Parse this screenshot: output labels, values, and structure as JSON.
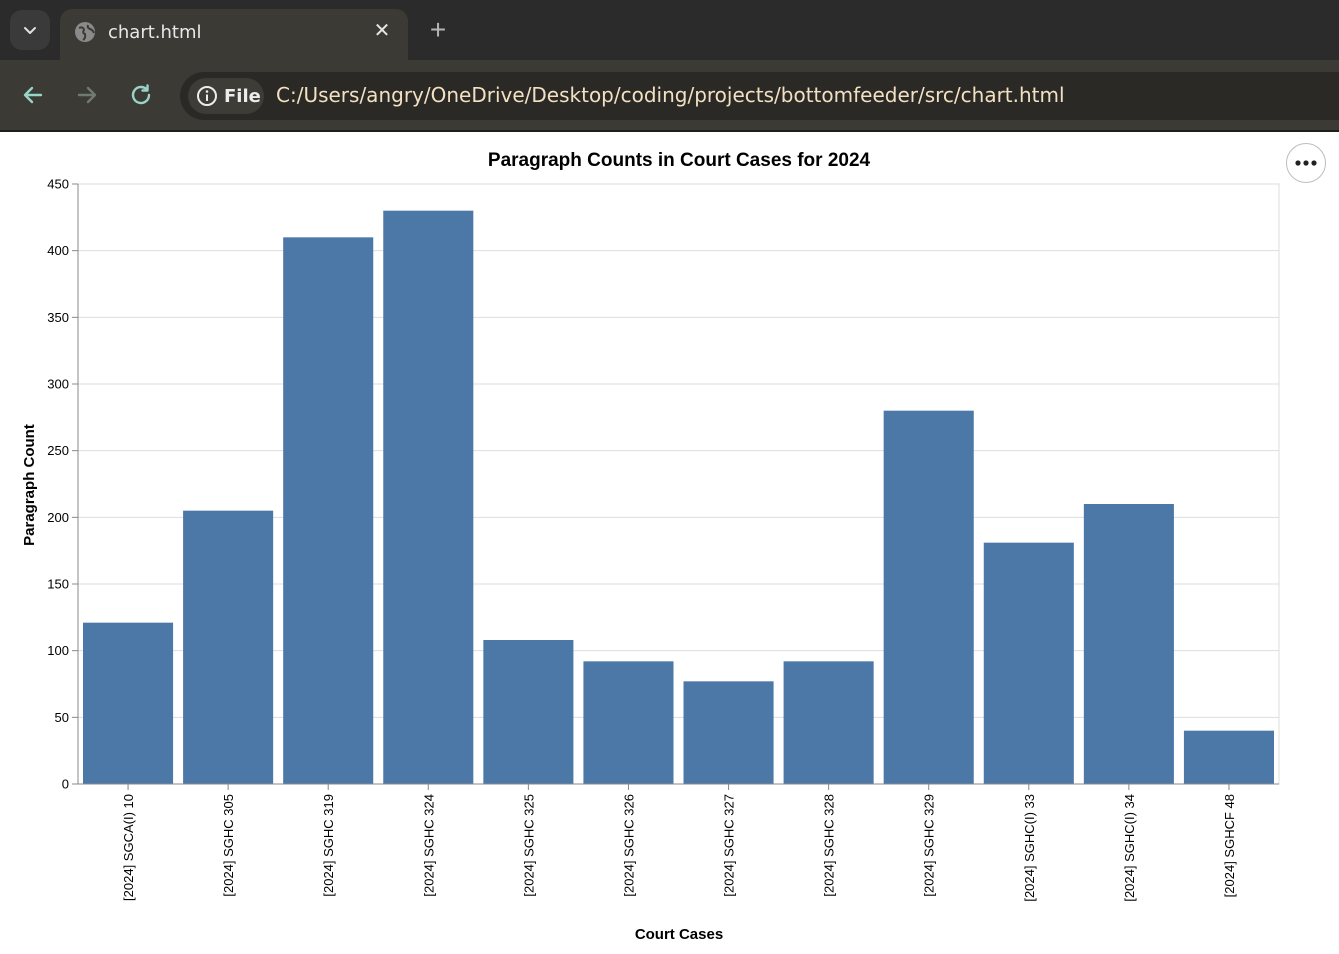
{
  "browser": {
    "tab": {
      "title": "chart.html",
      "close_glyph": "✕",
      "favicon": "globe-icon"
    },
    "new_tab_glyph": "+",
    "tab_menu_icon": "chevron-down-icon",
    "nav": {
      "back_icon": "arrow-left-icon",
      "forward_icon": "arrow-right-icon",
      "reload_icon": "reload-icon"
    },
    "site_chip": {
      "label": "File",
      "icon": "info-icon"
    },
    "url": "C:/Users/angry/OneDrive/Desktop/coding/projects/bottomfeeder/src/chart.html",
    "colors": {
      "tabstrip": "#2b2b2b",
      "toolbar": "#3b3a34",
      "url_text": "#f2e0c2"
    }
  },
  "actions": {
    "more_icon": "more-horizontal-icon"
  },
  "chart_data": {
    "type": "bar",
    "title": "Paragraph Counts in Court Cases for 2024",
    "xlabel": "Court Cases",
    "ylabel": "Paragraph Count",
    "ylim": [
      0,
      450
    ],
    "yticks": [
      0,
      50,
      100,
      150,
      200,
      250,
      300,
      350,
      400,
      450
    ],
    "grid": true,
    "bar_color": "#4c78a8",
    "categories": [
      "[2024] SGCA(I) 10",
      "[2024] SGHC 305",
      "[2024] SGHC 319",
      "[2024] SGHC 324",
      "[2024] SGHC 325",
      "[2024] SGHC 326",
      "[2024] SGHC 327",
      "[2024] SGHC 328",
      "[2024] SGHC 329",
      "[2024] SGHC(I) 33",
      "[2024] SGHC(I) 34",
      "[2024] SGHCF 48"
    ],
    "values": [
      121,
      205,
      410,
      430,
      108,
      92,
      77,
      92,
      280,
      181,
      210,
      40
    ]
  }
}
